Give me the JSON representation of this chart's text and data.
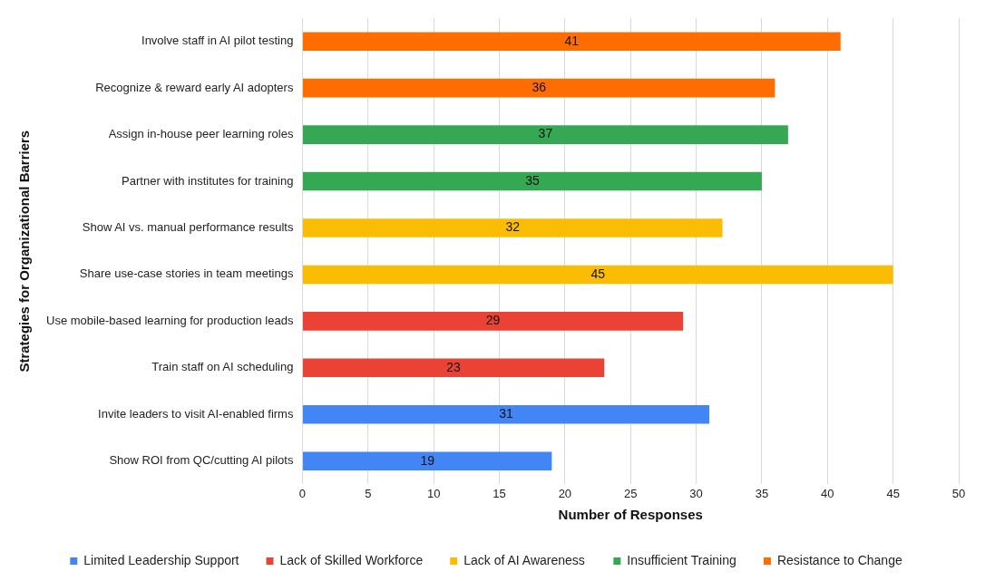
{
  "chart_data": {
    "type": "bar",
    "orientation": "horizontal",
    "xlabel": "Number of Responses",
    "ylabel": "Strategies for Organizational Barriers",
    "categories": [
      "Involve staff in AI pilot testing",
      "Recognize & reward early AI adopters",
      "Assign in-house peer learning roles",
      "Partner with institutes for training",
      "Show AI vs. manual performance results",
      "Share use-case stories in team meetings",
      "Use mobile-based learning for production leads",
      "Train staff on AI scheduling",
      "Invite leaders to visit AI-enabled firms",
      "Show ROI from QC/cutting AI pilots"
    ],
    "series": [
      {
        "name": "Limited Leadership Support",
        "color": "#4285f4",
        "values": [
          null,
          null,
          null,
          null,
          null,
          null,
          null,
          null,
          31,
          19
        ]
      },
      {
        "name": "Lack of Skilled Workforce",
        "color": "#ea4335",
        "values": [
          null,
          null,
          null,
          null,
          null,
          null,
          29,
          23,
          null,
          null
        ]
      },
      {
        "name": "Lack of AI Awareness",
        "color": "#fbbc04",
        "values": [
          null,
          null,
          null,
          null,
          32,
          45,
          null,
          null,
          null,
          null
        ]
      },
      {
        "name": "Insufficient Training",
        "color": "#34a853",
        "values": [
          null,
          null,
          37,
          35,
          null,
          null,
          null,
          null,
          null,
          null
        ]
      },
      {
        "name": "Resistance to Change",
        "color": "#ff6d01",
        "values": [
          41,
          36,
          null,
          null,
          null,
          null,
          null,
          null,
          null,
          null
        ]
      }
    ],
    "xlim": [
      0,
      50
    ],
    "xticks": [
      0,
      5,
      10,
      15,
      20,
      25,
      30,
      35,
      40,
      45,
      50
    ],
    "grid": "x",
    "legend": "bottom",
    "data_labels": true
  }
}
